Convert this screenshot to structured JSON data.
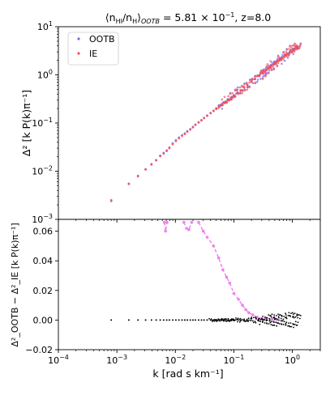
{
  "chart_data": [
    {
      "type": "scatter",
      "title_main": "⟨n",
      "title_sub1": "HI",
      "title_mid": "/n",
      "title_sub2": "H",
      "title_close": "⟩",
      "title_sub3": "OOTB",
      "title_rest": " = 5.81 × 10",
      "title_exp": "−1",
      "title_tail": ", z=8.0",
      "ylabel": "Δ² [k P(k)π⁻¹]",
      "xscale": "log",
      "yscale": "log",
      "xlim": [
        0.0001,
        3
      ],
      "ylim": [
        0.001,
        10
      ],
      "xticks": [
        {
          "value": 0.0001,
          "base": "10",
          "exp": "−4"
        },
        {
          "value": 0.001,
          "base": "10",
          "exp": "−3"
        },
        {
          "value": 0.01,
          "base": "10",
          "exp": "−2"
        },
        {
          "value": 0.1,
          "base": "10",
          "exp": "−1"
        },
        {
          "value": 1,
          "base": "10",
          "exp": "0"
        }
      ],
      "yticks": [
        {
          "value": 0.001,
          "base": "10",
          "exp": "−3"
        },
        {
          "value": 0.01,
          "base": "10",
          "exp": "−2"
        },
        {
          "value": 0.1,
          "base": "10",
          "exp": "−1"
        },
        {
          "value": 1,
          "base": "10",
          "exp": "0"
        },
        {
          "value": 10,
          "base": "10",
          "exp": "1"
        }
      ],
      "legend": {
        "position": "top-left",
        "entries": [
          "OOTB",
          "IE"
        ]
      },
      "series": [
        {
          "name": "OOTB",
          "color": "#6b6bf0",
          "points": [
            [
              0.0008,
              0.0025
            ],
            [
              0.0016,
              0.0055
            ],
            [
              0.0023,
              0.008
            ],
            [
              0.0031,
              0.011
            ],
            [
              0.0039,
              0.014
            ],
            [
              0.0047,
              0.017
            ],
            [
              0.0055,
              0.021
            ],
            [
              0.0063,
              0.024
            ],
            [
              0.0071,
              0.027
            ],
            [
              0.0079,
              0.031
            ],
            [
              0.009,
              0.038
            ],
            [
              0.0102,
              0.044
            ],
            [
              0.0115,
              0.05
            ],
            [
              0.013,
              0.056
            ],
            [
              0.0145,
              0.061
            ],
            [
              0.016,
              0.068
            ],
            [
              0.018,
              0.075
            ],
            [
              0.02,
              0.083
            ],
            [
              0.022,
              0.093
            ],
            [
              0.025,
              0.104
            ],
            [
              0.028,
              0.115
            ],
            [
              0.031,
              0.128
            ],
            [
              0.035,
              0.143
            ],
            [
              0.04,
              0.162
            ],
            [
              0.045,
              0.18
            ],
            [
              0.05,
              0.198
            ],
            [
              0.056,
              0.22
            ],
            [
              0.063,
              0.245
            ],
            [
              0.07,
              0.27
            ],
            [
              0.08,
              0.305
            ],
            [
              0.09,
              0.34
            ],
            [
              0.1,
              0.378
            ],
            [
              0.115,
              0.43
            ],
            [
              0.13,
              0.48
            ],
            [
              0.15,
              0.55
            ],
            [
              0.17,
              0.62
            ],
            [
              0.2,
              0.72
            ],
            [
              0.23,
              0.82
            ],
            [
              0.27,
              0.95
            ],
            [
              0.31,
              1.08
            ],
            [
              0.36,
              1.25
            ],
            [
              0.42,
              1.45
            ],
            [
              0.49,
              1.68
            ],
            [
              0.57,
              1.95
            ],
            [
              0.66,
              2.25
            ],
            [
              0.77,
              2.6
            ],
            [
              0.9,
              3.0
            ],
            [
              1.05,
              3.5
            ],
            [
              1.2,
              3.9
            ]
          ]
        },
        {
          "name": "IE",
          "color": "#ff4a4a",
          "points": [
            [
              0.0008,
              0.0024
            ],
            [
              0.0016,
              0.0054
            ],
            [
              0.0023,
              0.0078
            ],
            [
              0.0031,
              0.0108
            ],
            [
              0.0039,
              0.0138
            ],
            [
              0.0047,
              0.0168
            ],
            [
              0.0055,
              0.0205
            ],
            [
              0.0063,
              0.0232
            ],
            [
              0.0071,
              0.0262
            ],
            [
              0.0079,
              0.03
            ],
            [
              0.009,
              0.036
            ],
            [
              0.0102,
              0.042
            ],
            [
              0.0115,
              0.048
            ],
            [
              0.013,
              0.054
            ],
            [
              0.0145,
              0.059
            ],
            [
              0.016,
              0.066
            ],
            [
              0.018,
              0.073
            ],
            [
              0.02,
              0.081
            ],
            [
              0.022,
              0.091
            ],
            [
              0.025,
              0.102
            ],
            [
              0.028,
              0.113
            ],
            [
              0.031,
              0.126
            ],
            [
              0.035,
              0.141
            ],
            [
              0.04,
              0.16
            ],
            [
              0.045,
              0.178
            ],
            [
              0.05,
              0.196
            ],
            [
              0.056,
              0.218
            ],
            [
              0.063,
              0.243
            ],
            [
              0.07,
              0.268
            ],
            [
              0.08,
              0.302
            ],
            [
              0.09,
              0.337
            ],
            [
              0.1,
              0.375
            ],
            [
              0.115,
              0.427
            ],
            [
              0.13,
              0.477
            ],
            [
              0.15,
              0.547
            ],
            [
              0.17,
              0.617
            ],
            [
              0.2,
              0.717
            ],
            [
              0.23,
              0.817
            ],
            [
              0.27,
              0.947
            ],
            [
              0.31,
              1.077
            ],
            [
              0.36,
              1.247
            ],
            [
              0.42,
              1.447
            ],
            [
              0.49,
              1.677
            ],
            [
              0.57,
              1.947
            ],
            [
              0.66,
              2.247
            ],
            [
              0.77,
              2.597
            ],
            [
              0.9,
              2.997
            ],
            [
              1.05,
              3.497
            ],
            [
              1.2,
              3.897
            ]
          ]
        }
      ]
    },
    {
      "type": "scatter",
      "ylabel": "Δ²_OOTB − Δ²_IE [k P(k)π⁻¹]",
      "xlabel": "k [rad s km⁻¹]",
      "xscale": "log",
      "xlim": [
        0.0001,
        3
      ],
      "ylim": [
        -0.02,
        0.068
      ],
      "yticks": [
        -0.02,
        0.0,
        0.02,
        0.04,
        0.06
      ],
      "ytick_labels": [
        "−0.02",
        "0.00",
        "0.02",
        "0.04",
        "0.06"
      ],
      "series": [
        {
          "name": "",
          "color": "#000000",
          "style": "points",
          "points": [
            [
              0.0008,
              0.0
            ],
            [
              0.0016,
              0.0
            ],
            [
              0.0023,
              0.0
            ],
            [
              0.0031,
              0.0
            ],
            [
              0.0039,
              0.0
            ],
            [
              0.0047,
              0.0
            ],
            [
              0.0055,
              0.0
            ],
            [
              0.0063,
              0.0
            ],
            [
              0.0071,
              0.0
            ],
            [
              0.0079,
              0.0
            ],
            [
              0.009,
              0.0
            ],
            [
              0.0102,
              0.0
            ],
            [
              0.0115,
              0.0
            ],
            [
              0.013,
              0.0
            ],
            [
              0.0145,
              0.0
            ],
            [
              0.016,
              0.0
            ],
            [
              0.018,
              0.0
            ],
            [
              0.02,
              0.0
            ],
            [
              0.022,
              0.0
            ],
            [
              0.025,
              0.0
            ],
            [
              0.028,
              0.0
            ],
            [
              0.031,
              0.0
            ],
            [
              0.035,
              0.0
            ],
            [
              0.04,
              0.0
            ],
            [
              0.045,
              0.0
            ],
            [
              0.05,
              0.0
            ],
            [
              0.056,
              0.0
            ],
            [
              0.063,
              0.0
            ],
            [
              0.07,
              0.0
            ],
            [
              0.08,
              0.0
            ],
            [
              0.09,
              0.0
            ],
            [
              0.1,
              0.0
            ],
            [
              0.115,
              0.0005
            ],
            [
              0.13,
              -0.0005
            ],
            [
              0.15,
              0.0005
            ],
            [
              0.17,
              -0.0005
            ],
            [
              0.2,
              0.001
            ],
            [
              0.23,
              -0.001
            ],
            [
              0.27,
              0.001
            ],
            [
              0.31,
              -0.001
            ],
            [
              0.36,
              0.0015
            ],
            [
              0.42,
              -0.0015
            ],
            [
              0.49,
              0.002
            ],
            [
              0.57,
              -0.002
            ],
            [
              0.66,
              0.0025
            ],
            [
              0.77,
              -0.0025
            ],
            [
              0.9,
              0.003
            ],
            [
              1.05,
              -0.003
            ],
            [
              1.2,
              0.003
            ]
          ]
        },
        {
          "name": "",
          "color": "#ee82ee",
          "style": "dashed-line-markers",
          "points": [
            [
              0.0065,
              0.066
            ],
            [
              0.0068,
              0.06
            ],
            [
              0.0072,
              0.066
            ],
            [
              0.014,
              0.066
            ],
            [
              0.0155,
              0.062
            ],
            [
              0.017,
              0.061
            ],
            [
              0.019,
              0.066
            ],
            [
              0.025,
              0.066
            ],
            [
              0.03,
              0.06
            ],
            [
              0.035,
              0.056
            ],
            [
              0.045,
              0.05
            ],
            [
              0.055,
              0.042
            ],
            [
              0.065,
              0.034
            ],
            [
              0.075,
              0.029
            ],
            [
              0.085,
              0.025
            ],
            [
              0.1,
              0.018
            ],
            [
              0.12,
              0.014
            ],
            [
              0.14,
              0.01
            ],
            [
              0.16,
              0.007
            ],
            [
              0.18,
              0.005
            ],
            [
              0.21,
              0.0035
            ],
            [
              0.25,
              0.002
            ],
            [
              0.3,
              0.001
            ],
            [
              0.35,
              0.0008
            ],
            [
              0.45,
              0.0005
            ],
            [
              0.55,
              0.0003
            ]
          ]
        }
      ]
    }
  ]
}
